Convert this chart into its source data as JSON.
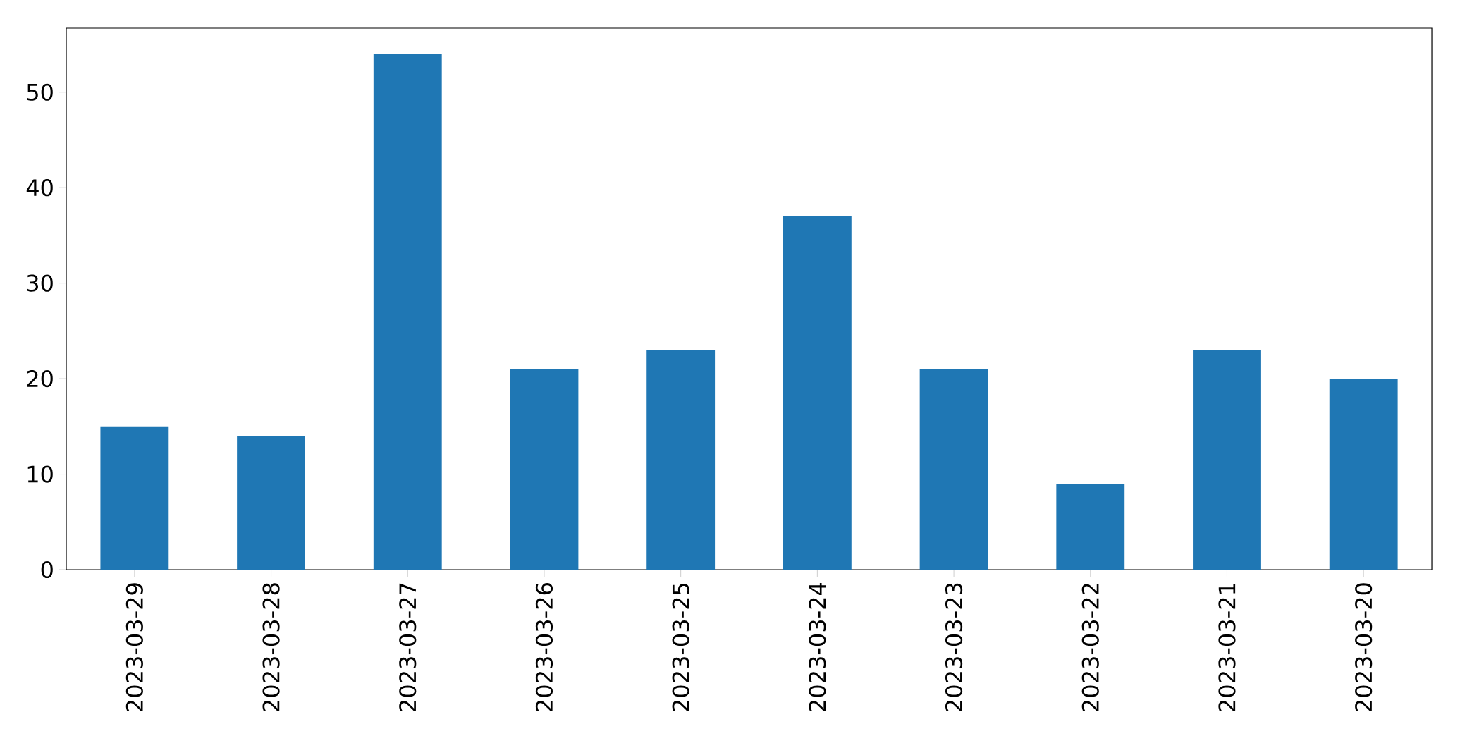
{
  "chart_data": {
    "type": "bar",
    "categories": [
      "2023-03-29",
      "2023-03-28",
      "2023-03-27",
      "2023-03-26",
      "2023-03-25",
      "2023-03-24",
      "2023-03-23",
      "2023-03-22",
      "2023-03-21",
      "2023-03-20"
    ],
    "values": [
      15,
      14,
      54,
      21,
      23,
      37,
      21,
      9,
      23,
      20
    ],
    "color": "#1f77b4",
    "ylim": [
      0,
      56.7
    ],
    "yticks": [
      0,
      10,
      20,
      30,
      40,
      50
    ],
    "grid": false
  }
}
